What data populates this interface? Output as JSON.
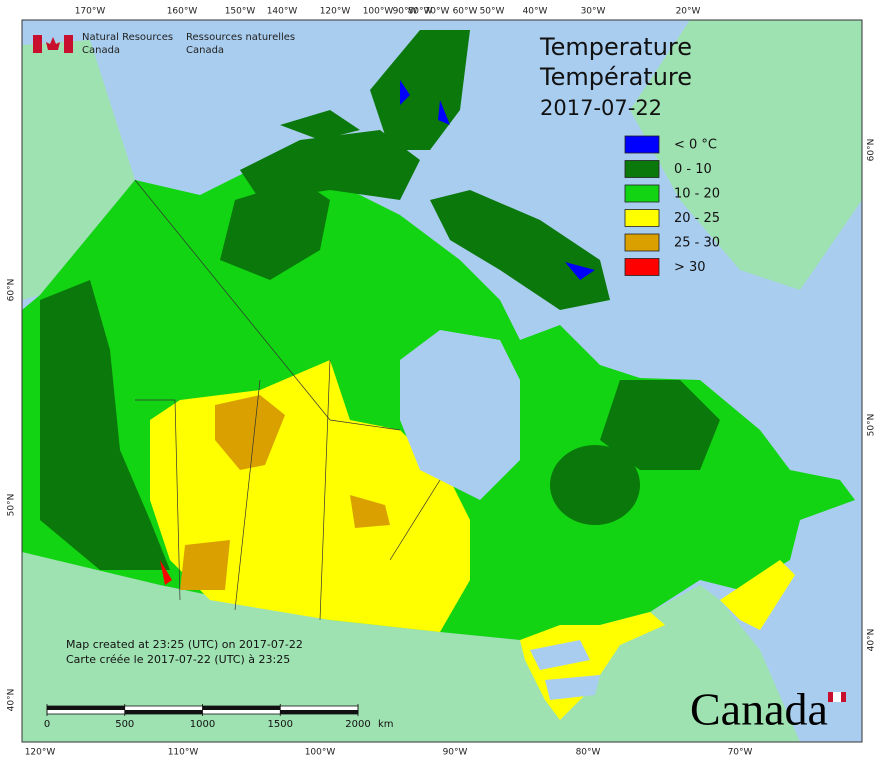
{
  "header": {
    "logo": [
      "Natural Resources",
      "Canada",
      "Ressources naturelles",
      "Canada"
    ]
  },
  "title": [
    "Temperature",
    "Température",
    "2017-07-22"
  ],
  "legend": [
    {
      "label": "< 0 °C",
      "color": "#0000ff"
    },
    {
      "label": "0 - 10",
      "color": "#0a780a"
    },
    {
      "label": "10 - 20",
      "color": "#12d412"
    },
    {
      "label": "20 - 25",
      "color": "#ffff00"
    },
    {
      "label": "25 - 30",
      "color": "#d9a000"
    },
    {
      "label": "> 30",
      "color": "#ff0000"
    }
  ],
  "graticule": {
    "top": [
      "170°W",
      "160°W",
      "150°W",
      "140°W",
      "120°W",
      "100°W",
      "90°W",
      "80°W",
      "70°W",
      "60°W",
      "50°W",
      "40°W",
      "30°W",
      "20°W"
    ],
    "bottom": [
      "120°W",
      "110°W",
      "100°W",
      "90°W",
      "80°W",
      "70°W"
    ],
    "left": [
      "60°N",
      "50°N",
      "40°N"
    ],
    "right": [
      "60°N",
      "50°N",
      "40°N"
    ]
  },
  "notes": [
    "Map created at 23:25 (UTC) on 2017-07-22",
    "Carte créée le 2017-07-22 (UTC) à 23:25"
  ],
  "scale": {
    "ticks": [
      0,
      500,
      1000,
      1500,
      2000
    ],
    "unit": "km"
  },
  "wordmark": "Canada"
}
